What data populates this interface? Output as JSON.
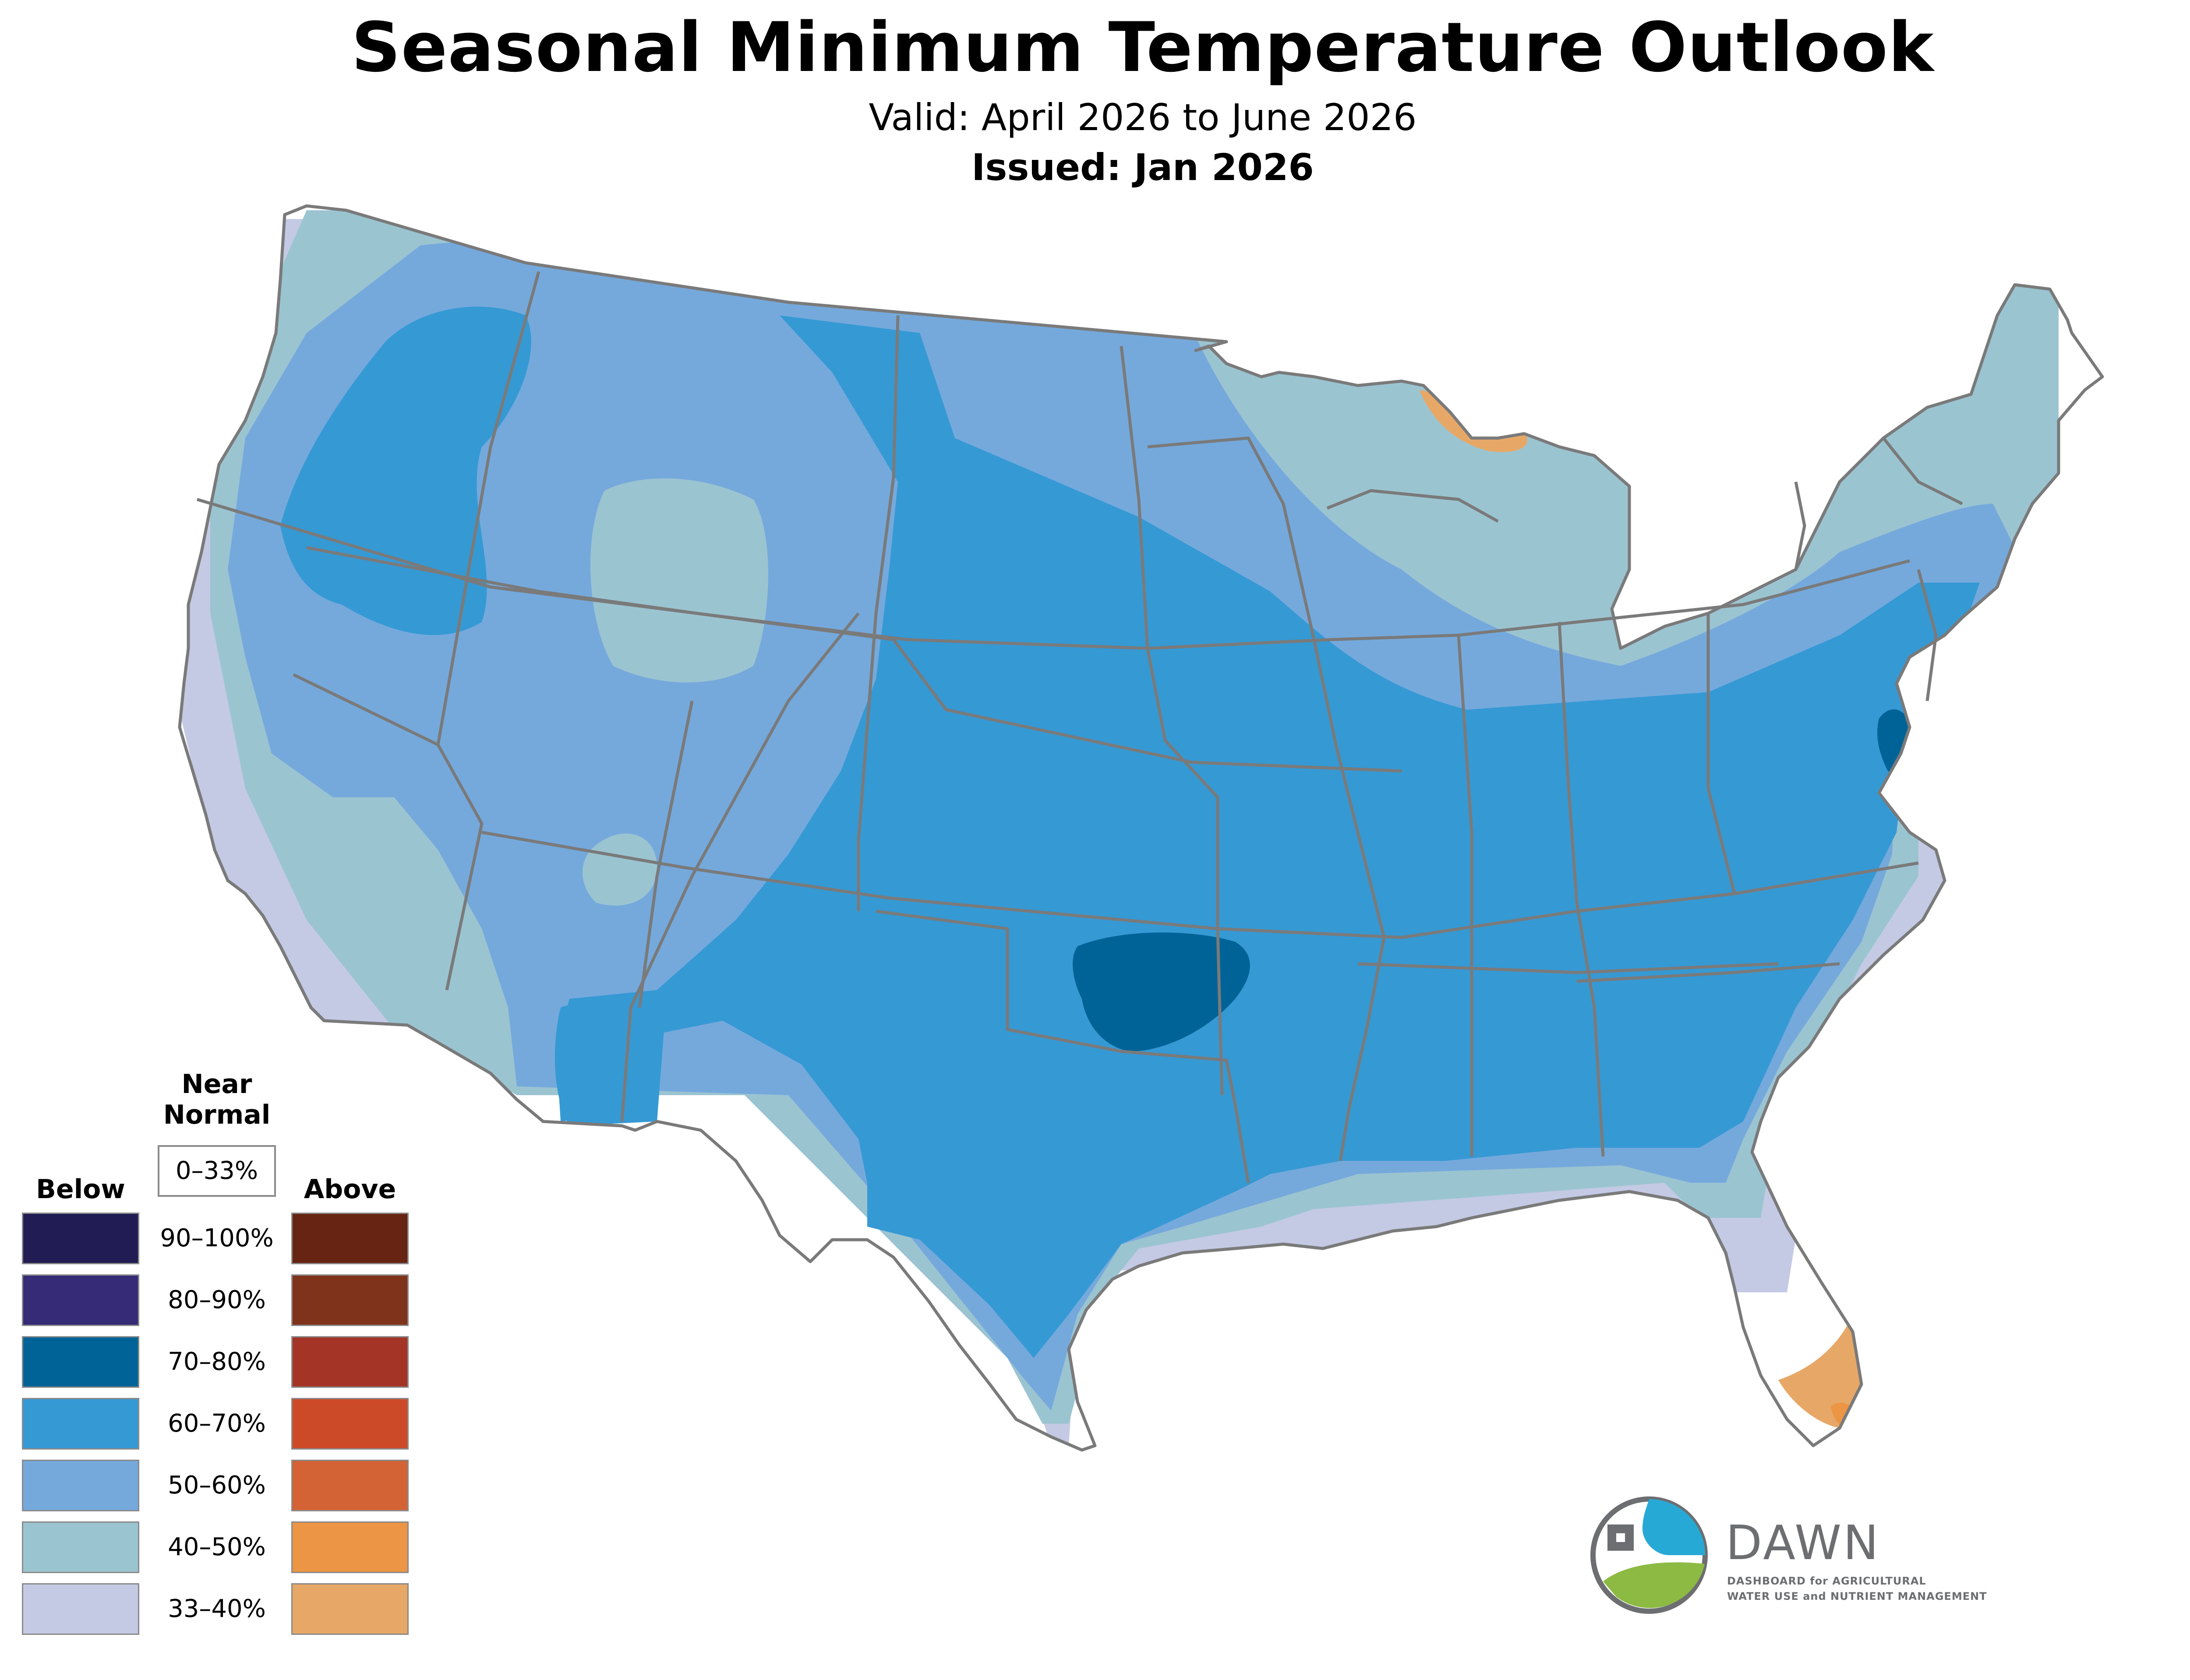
{
  "header": {
    "title": "Seasonal Minimum Temperature Outlook",
    "valid": "Valid: April 2026 to June 2026",
    "issued": "Issued: Jan 2026"
  },
  "legend": {
    "below_heading": "Below",
    "near_normal_heading_line1": "Near",
    "near_normal_heading_line2": "Normal",
    "near_normal_range": "0–33%",
    "above_heading": "Above",
    "categories": [
      {
        "range": "90–100%",
        "below_color": "#211c53",
        "above_color": "#672412"
      },
      {
        "range": "80–90%",
        "below_color": "#352b77",
        "above_color": "#7f331b"
      },
      {
        "range": "70–80%",
        "below_color": "#006397",
        "above_color": "#a43526"
      },
      {
        "range": "60–70%",
        "below_color": "#3599d4",
        "above_color": "#cd4a28"
      },
      {
        "range": "50–60%",
        "below_color": "#75a9dc",
        "above_color": "#d36235"
      },
      {
        "range": "40–50%",
        "below_color": "#9bc4d1",
        "above_color": "#ec9544"
      },
      {
        "range": "33–40%",
        "below_color": "#c4cae4",
        "above_color": "#e7a867"
      }
    ]
  },
  "logo": {
    "name": "DAWN",
    "line1": "DASHBOARD for AGRICULTURAL",
    "line2": "WATER USE and NUTRIENT MANAGEMENT"
  },
  "map_style": {
    "border_color": "#7a7a7a",
    "land_color": "#ffffff"
  }
}
